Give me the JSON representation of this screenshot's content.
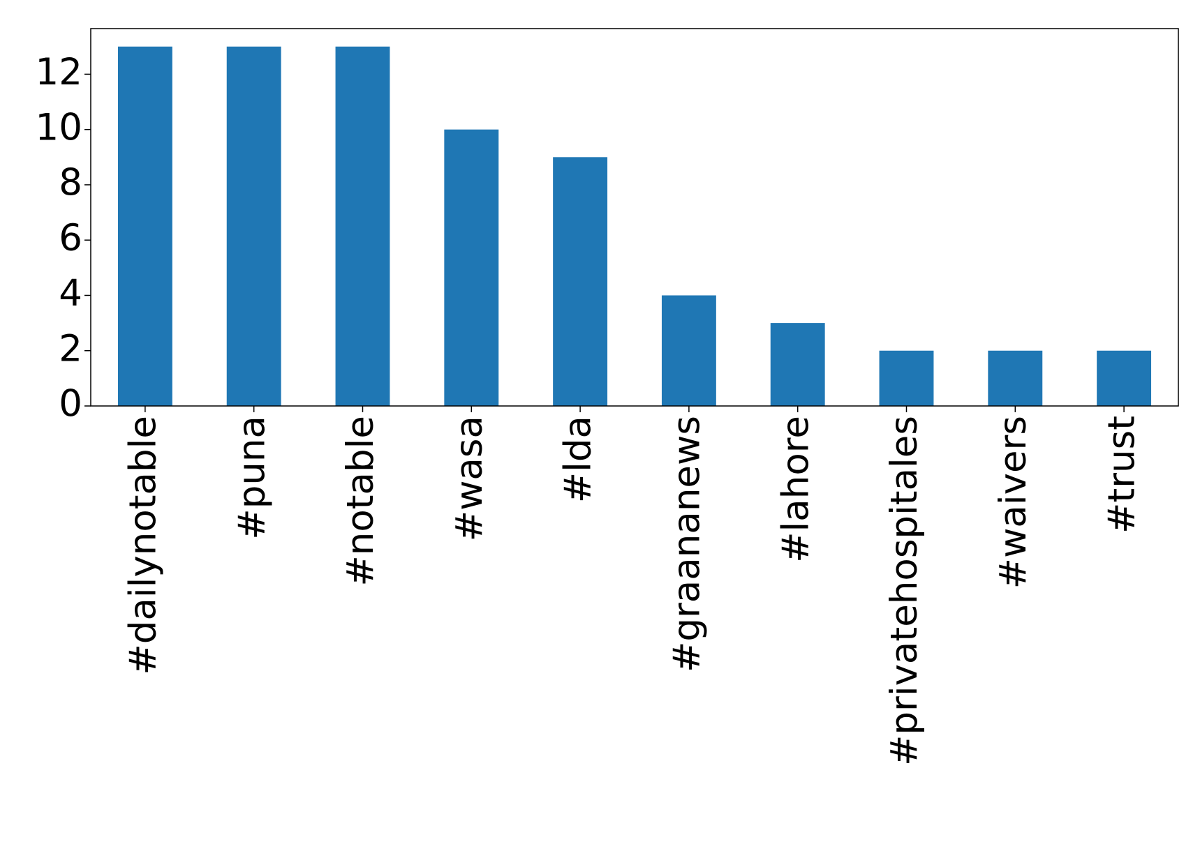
{
  "chart_data": {
    "type": "bar",
    "categories": [
      "#dailynotable",
      "#puna",
      "#notable",
      "#wasa",
      "#lda",
      "#graananews",
      "#lahore",
      "#privatehospitales",
      "#waivers",
      "#trust"
    ],
    "values": [
      13,
      13,
      13,
      10,
      9,
      4,
      3,
      2,
      2,
      2
    ],
    "color": "#1f77b4",
    "ylim": [
      0,
      13.65
    ],
    "yticks": [
      0,
      2,
      4,
      6,
      8,
      10,
      12
    ],
    "grid": false
  }
}
